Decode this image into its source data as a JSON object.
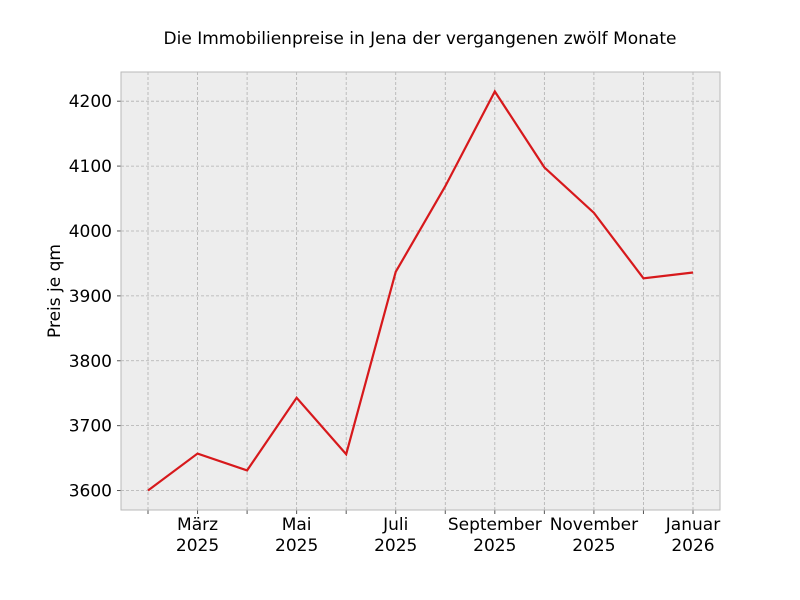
{
  "chart_data": {
    "type": "line",
    "title": "Die Immobilienpreise in Jena der vergangenen zwölf Monate",
    "xlabel": "",
    "ylabel": "Preis je qm",
    "x": [
      "2025-02",
      "2025-03",
      "2025-04",
      "2025-05",
      "2025-06",
      "2025-07",
      "2025-08",
      "2025-09",
      "2025-10",
      "2025-11",
      "2025-12",
      "2026-01"
    ],
    "x_tick_labels": [
      {
        "x": "2025-03",
        "lines": [
          "März",
          "2025"
        ]
      },
      {
        "x": "2025-05",
        "lines": [
          "Mai",
          "2025"
        ]
      },
      {
        "x": "2025-07",
        "lines": [
          "Juli",
          "2025"
        ]
      },
      {
        "x": "2025-09",
        "lines": [
          "September",
          "2025"
        ]
      },
      {
        "x": "2025-11",
        "lines": [
          "November",
          "2025"
        ]
      },
      {
        "x": "2026-01",
        "lines": [
          "Januar",
          "2026"
        ]
      }
    ],
    "series": [
      {
        "color": "#d7191c",
        "values": [
          3600,
          3657,
          3631,
          3743,
          3656,
          3937,
          4069,
          4215,
          4098,
          4028,
          3927,
          3936
        ]
      }
    ],
    "ylim": [
      3570,
      4245
    ],
    "yticks": [
      3600,
      3700,
      3800,
      3900,
      4000,
      4100,
      4200
    ],
    "grid": true,
    "legend": "none"
  }
}
